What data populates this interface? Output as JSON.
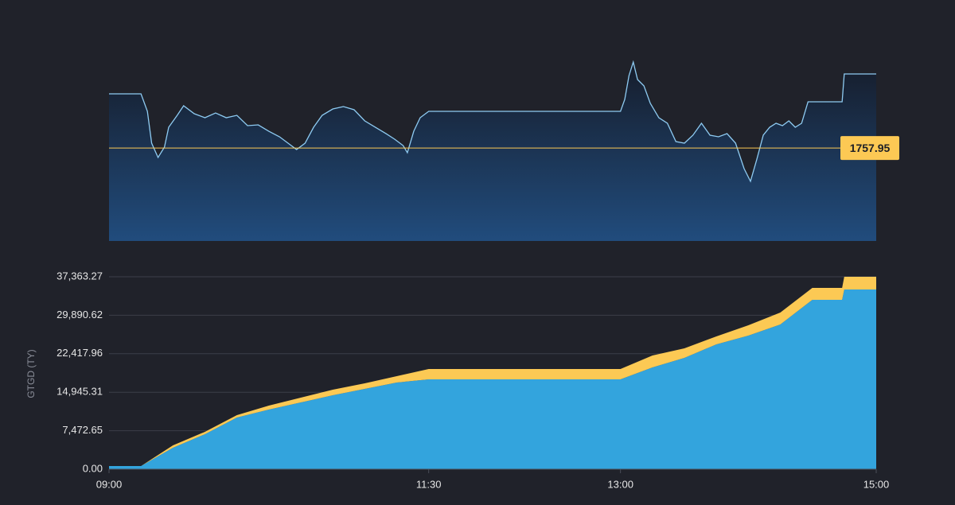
{
  "chart_data": [
    {
      "type": "line",
      "x": [
        "09:00",
        "09:15",
        "09:18",
        "09:20",
        "09:23",
        "09:26",
        "09:28",
        "09:32",
        "09:35",
        "09:40",
        "09:45",
        "09:50",
        "09:55",
        "10:00",
        "10:05",
        "10:10",
        "10:15",
        "10:20",
        "10:25",
        "10:28",
        "10:32",
        "10:36",
        "10:40",
        "10:45",
        "10:50",
        "10:55",
        "11:00",
        "11:05",
        "11:10",
        "11:14",
        "11:18",
        "11:20",
        "11:23",
        "11:26",
        "11:30",
        "13:00",
        "13:02",
        "13:04",
        "13:06",
        "13:08",
        "13:11",
        "13:14",
        "13:18",
        "13:22",
        "13:26",
        "13:30",
        "13:34",
        "13:38",
        "13:42",
        "13:46",
        "13:50",
        "13:54",
        "13:58",
        "14:01",
        "14:04",
        "14:07",
        "14:10",
        "14:13",
        "14:16",
        "14:19",
        "14:22",
        "14:25",
        "14:28",
        "14:44",
        "14:45",
        "15:00"
      ],
      "values": [
        1768.4,
        1768.4,
        1765.02,
        1758.88,
        1756.12,
        1758.11,
        1761.95,
        1764.25,
        1766.1,
        1764.56,
        1763.79,
        1764.71,
        1763.79,
        1764.25,
        1762.26,
        1762.41,
        1761.18,
        1760.11,
        1758.57,
        1757.65,
        1758.88,
        1761.95,
        1764.25,
        1765.48,
        1765.94,
        1765.33,
        1763.18,
        1761.95,
        1760.72,
        1759.65,
        1758.42,
        1757.04,
        1761.18,
        1763.79,
        1765.02,
        1765.02,
        1767.32,
        1771.93,
        1774.54,
        1771.16,
        1769.93,
        1766.56,
        1763.79,
        1762.72,
        1759.19,
        1758.88,
        1760.42,
        1762.72,
        1760.42,
        1760.11,
        1760.72,
        1758.88,
        1753.97,
        1751.51,
        1755.81,
        1760.42,
        1761.95,
        1762.72,
        1762.26,
        1763.18,
        1761.95,
        1762.72,
        1766.86,
        1766.86,
        1772.24,
        1772.24
      ],
      "color": "#8ecbf2",
      "xlim": [
        "09:00",
        "15:00"
      ],
      "ylim": [
        1740,
        1775
      ],
      "reference_line": 1757.95,
      "reference_color": "#fcc954"
    },
    {
      "type": "stacked_area",
      "y_label": "GTGD (TY)",
      "x": [
        "09:00",
        "09:15",
        "09:30",
        "09:45",
        "10:00",
        "10:15",
        "10:30",
        "10:45",
        "11:00",
        "11:15",
        "11:30",
        "13:00",
        "13:15",
        "13:30",
        "13:45",
        "14:00",
        "14:15",
        "14:30",
        "14:44",
        "14:45",
        "15:00"
      ],
      "series": [
        {
          "color": "#33a4dd",
          "values": [
            618,
            618,
            4169,
            6793,
            10035,
            11579,
            12969,
            14358,
            15593,
            16829,
            17446,
            17446,
            19762,
            21615,
            24239,
            25938,
            28099,
            32885,
            32885,
            34892,
            34892
          ]
        },
        {
          "color": "#fcc954",
          "values": [
            0,
            0,
            463,
            463,
            463,
            772,
            926,
            1081,
            1081,
            1235,
            2007,
            2007,
            2316,
            1853,
            1544,
            2007,
            2316,
            2316,
            2316,
            2470,
            2470
          ]
        }
      ],
      "xlim": [
        "09:00",
        "15:00"
      ],
      "xticks": [
        "09:00",
        "11:30",
        "13:00",
        "15:00"
      ],
      "ylim": [
        0,
        37363.27
      ],
      "yticks": [
        {
          "value": 0,
          "label": "0.00"
        },
        {
          "value": 7472.65,
          "label": "7,472.65"
        },
        {
          "value": 14945.31,
          "label": "14,945.31"
        },
        {
          "value": 22417.96,
          "label": "22,417.96"
        },
        {
          "value": 29890.62,
          "label": "29,890.62"
        },
        {
          "value": 37363.27,
          "label": "37,363.27"
        }
      ],
      "grid": true
    }
  ]
}
